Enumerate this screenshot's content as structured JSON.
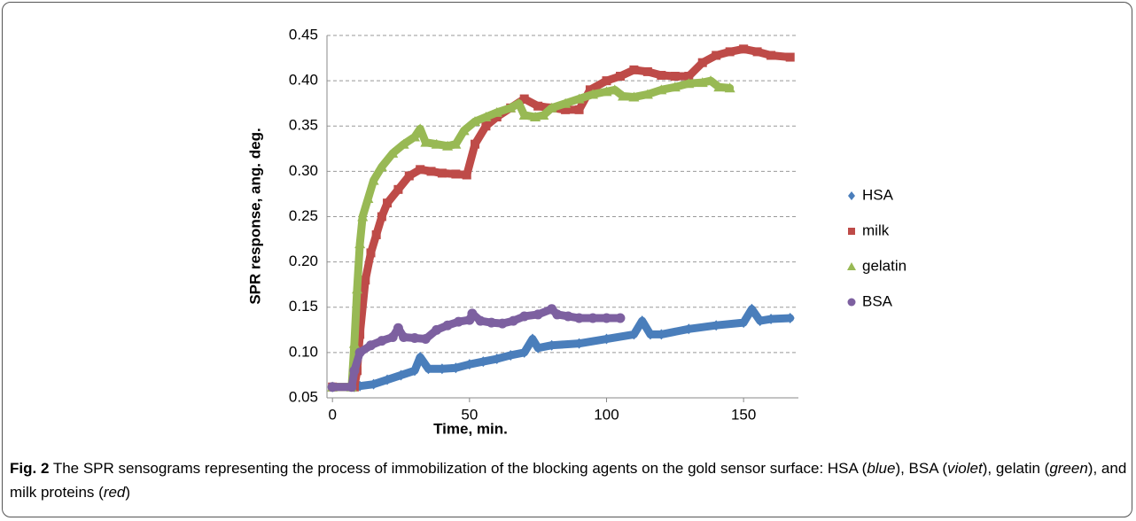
{
  "chart_data": {
    "type": "scatter",
    "xlabel": "Time, min.",
    "ylabel": "SPR response, ang. deg.",
    "xlim": [
      -2,
      170
    ],
    "xticks": [
      0,
      50,
      100,
      150
    ],
    "ylim": [
      0.05,
      0.45
    ],
    "yticks": [
      0.05,
      {
        "value": 0.1,
        "label": "0.10"
      },
      0.15,
      {
        "value": 0.2,
        "label": "0.20"
      },
      0.25,
      {
        "value": 0.3,
        "label": "0.30"
      },
      0.35,
      {
        "value": 0.4,
        "label": "0.40"
      },
      0.45
    ],
    "grid": true,
    "legend": "right",
    "series": [
      {
        "name": "HSA",
        "color": "#4a7ebb",
        "marker": "diamond",
        "x": [
          0,
          8,
          10,
          15,
          20,
          25,
          30,
          32,
          35,
          40,
          45,
          50,
          55,
          60,
          65,
          70,
          73,
          75,
          80,
          90,
          100,
          110,
          113,
          116,
          120,
          130,
          140,
          150,
          153,
          156,
          160,
          167
        ],
        "values": [
          0.062,
          0.062,
          0.063,
          0.065,
          0.07,
          0.075,
          0.08,
          0.095,
          0.082,
          0.082,
          0.083,
          0.087,
          0.09,
          0.093,
          0.097,
          0.1,
          0.115,
          0.105,
          0.108,
          0.11,
          0.115,
          0.12,
          0.135,
          0.12,
          0.12,
          0.126,
          0.13,
          0.133,
          0.148,
          0.135,
          0.137,
          0.138
        ]
      },
      {
        "name": "milk",
        "color": "#be4b48",
        "marker": "square",
        "x": [
          0,
          8,
          9,
          10,
          12,
          14,
          16,
          18,
          20,
          24,
          28,
          32,
          36,
          40,
          45,
          49,
          52,
          56,
          60,
          65,
          70,
          75,
          80,
          85,
          90,
          94,
          100,
          105,
          110,
          115,
          120,
          125,
          130,
          135,
          140,
          145,
          150,
          155,
          160,
          167
        ],
        "values": [
          0.062,
          0.062,
          0.08,
          0.12,
          0.18,
          0.21,
          0.23,
          0.25,
          0.265,
          0.28,
          0.295,
          0.302,
          0.3,
          0.298,
          0.297,
          0.296,
          0.33,
          0.35,
          0.36,
          0.37,
          0.38,
          0.372,
          0.37,
          0.368,
          0.368,
          0.39,
          0.4,
          0.405,
          0.412,
          0.41,
          0.406,
          0.405,
          0.405,
          0.42,
          0.428,
          0.432,
          0.435,
          0.432,
          0.428,
          0.426
        ]
      },
      {
        "name": "gelatin",
        "color": "#98b954",
        "marker": "triangle",
        "x": [
          0,
          7,
          8,
          9,
          10,
          11,
          13,
          15,
          18,
          22,
          26,
          30,
          32,
          34,
          38,
          42,
          45,
          48,
          52,
          56,
          60,
          65,
          68,
          70,
          74,
          77,
          80,
          85,
          90,
          95,
          100,
          103,
          106,
          110,
          115,
          120,
          125,
          130,
          135,
          138,
          141,
          145
        ],
        "values": [
          0.062,
          0.062,
          0.11,
          0.17,
          0.22,
          0.25,
          0.27,
          0.29,
          0.305,
          0.32,
          0.33,
          0.338,
          0.347,
          0.332,
          0.33,
          0.328,
          0.33,
          0.345,
          0.355,
          0.36,
          0.365,
          0.37,
          0.375,
          0.362,
          0.36,
          0.362,
          0.37,
          0.375,
          0.38,
          0.385,
          0.388,
          0.39,
          0.383,
          0.382,
          0.385,
          0.39,
          0.393,
          0.397,
          0.398,
          0.4,
          0.393,
          0.392
        ]
      },
      {
        "name": "BSA",
        "color": "#7d60a0",
        "marker": "circle",
        "x": [
          0,
          7,
          8,
          10,
          14,
          18,
          22,
          24,
          26,
          30,
          34,
          38,
          42,
          46,
          50,
          51,
          54,
          58,
          62,
          66,
          70,
          75,
          80,
          82,
          86,
          90,
          95,
          100,
          105
        ],
        "values": [
          0.062,
          0.062,
          0.08,
          0.1,
          0.108,
          0.113,
          0.117,
          0.127,
          0.117,
          0.116,
          0.115,
          0.125,
          0.13,
          0.134,
          0.136,
          0.143,
          0.135,
          0.133,
          0.132,
          0.135,
          0.14,
          0.142,
          0.148,
          0.142,
          0.14,
          0.138,
          0.138,
          0.138,
          0.138
        ]
      }
    ]
  },
  "caption": {
    "label": "Fig. 2",
    "parts": [
      "The SPR sensograms representing the process of immobilization of the blocking agents on the gold sensor surface: HSA (",
      "blue",
      "), BSA (",
      "violet",
      "), gelatin (",
      "green",
      "), and milk proteins (",
      "red",
      ")"
    ]
  }
}
